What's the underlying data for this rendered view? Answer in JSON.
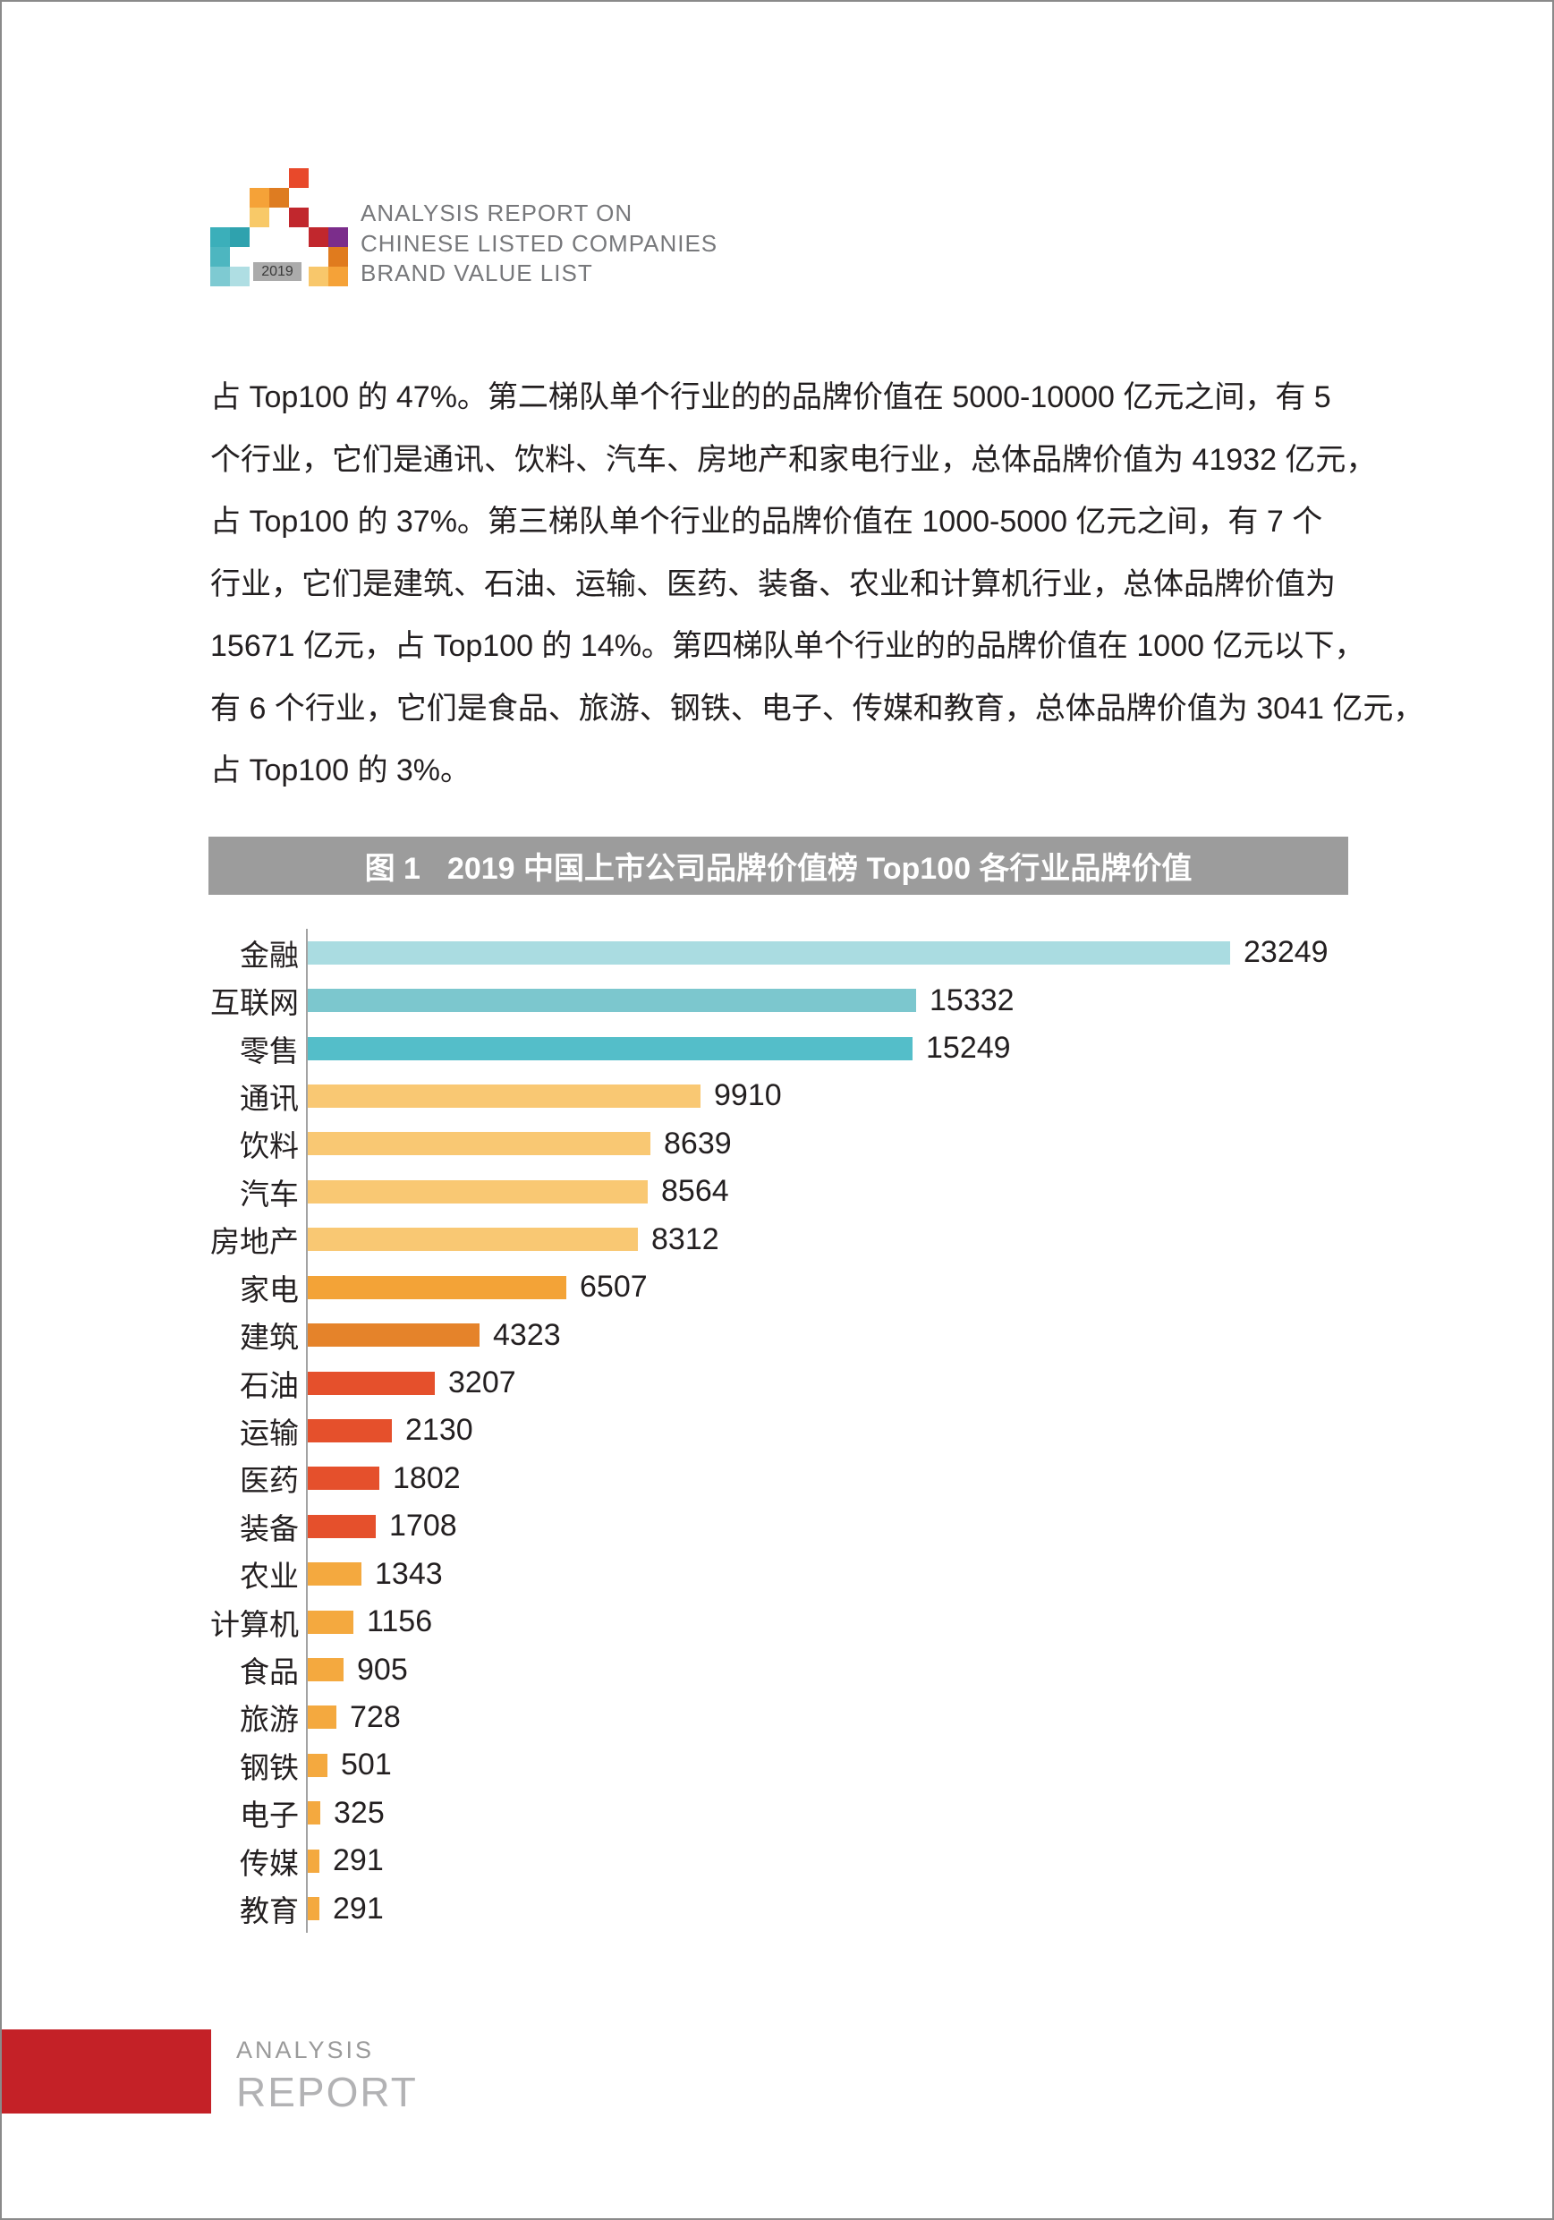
{
  "page": {
    "frame_color": "#8A8A8A",
    "background": "#FFFFFF"
  },
  "header": {
    "logo": {
      "year_label": "2019",
      "year_box_bg": "#ABABAB",
      "year_text_color": "#3A3A3A",
      "squares": [
        {
          "row": 0,
          "col": 4,
          "color": "#E8492B"
        },
        {
          "row": 1,
          "col": 2,
          "color": "#F5A238"
        },
        {
          "row": 1,
          "col": 3,
          "color": "#DE7C21"
        },
        {
          "row": 2,
          "col": 2,
          "color": "#F8C968"
        },
        {
          "row": 2,
          "col": 4,
          "color": "#C1272D"
        },
        {
          "row": 3,
          "col": 0,
          "color": "#3BAFBA"
        },
        {
          "row": 3,
          "col": 1,
          "color": "#2FA2AE"
        },
        {
          "row": 3,
          "col": 5,
          "color": "#C1272D"
        },
        {
          "row": 3,
          "col": 6,
          "color": "#7B2D8B"
        },
        {
          "row": 4,
          "col": 0,
          "color": "#4DB6C0"
        },
        {
          "row": 4,
          "col": 6,
          "color": "#E07B1E"
        },
        {
          "row": 5,
          "col": 0,
          "color": "#7ECAD2"
        },
        {
          "row": 5,
          "col": 1,
          "color": "#AFDEE3"
        },
        {
          "row": 5,
          "col": 5,
          "color": "#F8C76B"
        },
        {
          "row": 5,
          "col": 6,
          "color": "#F5A238"
        }
      ]
    },
    "title_lines": [
      "ANALYSIS REPORT ON",
      "CHINESE LISTED COMPANIES",
      "BRAND VALUE LIST"
    ],
    "title_color": "#77787B"
  },
  "paragraph": {
    "text_color": "#231F20",
    "lines": [
      "占 Top100 的 47%。第二梯队单个行业的的品牌价值在 5000-10000 亿元之间，有 5",
      "个行业，它们是通讯、饮料、汽车、房地产和家电行业，总体品牌价值为 41932 亿元，",
      "占 Top100 的 37%。第三梯队单个行业的品牌价值在 1000-5000 亿元之间，有 7 个",
      "行业，它们是建筑、石油、运输、医药、装备、农业和计算机行业，总体品牌价值为",
      "15671 亿元，占 Top100 的 14%。第四梯队单个行业的的品牌价值在 1000 亿元以下，",
      "有 6 个行业，它们是食品、旅游、钢铁、电子、传媒和教育，总体品牌价值为 3041 亿元，",
      "占 Top100 的 3%。"
    ]
  },
  "figure": {
    "label": "图 1",
    "title": "2019 中国上市公司品牌价值榜 Top100 各行业品牌价值",
    "bar_bg": "#9C9C9C",
    "text_color": "#FFFFFF"
  },
  "chart_data": {
    "type": "bar",
    "orientation": "horizontal",
    "title": "图 1 2019 中国上市公司品牌价值榜 Top100 各行业品牌价值",
    "categories": [
      "金融",
      "互联网",
      "零售",
      "通讯",
      "饮料",
      "汽车",
      "房地产",
      "家电",
      "建筑",
      "石油",
      "运输",
      "医药",
      "装备",
      "农业",
      "计算机",
      "食品",
      "旅游",
      "钢铁",
      "电子",
      "传媒",
      "教育"
    ],
    "values": [
      23249,
      15332,
      15249,
      9910,
      8639,
      8564,
      8312,
      6507,
      4323,
      3207,
      2130,
      1802,
      1708,
      1343,
      1156,
      905,
      728,
      501,
      325,
      291,
      291
    ],
    "bar_colors": [
      "#AADCE1",
      "#7CC7CE",
      "#54BEC9",
      "#F9C873",
      "#F9C873",
      "#F9C873",
      "#F9C873",
      "#F3A337",
      "#E5832A",
      "#E5502C",
      "#E5502C",
      "#E5502C",
      "#E5502C",
      "#F4A93F",
      "#F4A93F",
      "#F4A93F",
      "#F4A93F",
      "#F4A93F",
      "#F4A93F",
      "#F4A93F",
      "#F4A93F"
    ],
    "value_labels_shown": true,
    "xlim": [
      0,
      23249
    ],
    "grid": false,
    "legend": false,
    "axis_color": "#A3A3A3",
    "label_color": "#231F20"
  },
  "footer": {
    "accent_color": "#C42127",
    "small_label": "ANALYSIS",
    "large_label": "REPORT",
    "small_color": "#9A9A9A",
    "large_color": "#B2B2B4"
  }
}
